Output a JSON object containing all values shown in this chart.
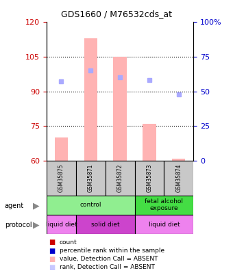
{
  "title": "GDS1660 / M76532cds_at",
  "samples": [
    "GSM35875",
    "GSM35871",
    "GSM35872",
    "GSM35873",
    "GSM35874"
  ],
  "ylim_left": [
    60,
    120
  ],
  "ylim_right": [
    0,
    100
  ],
  "yticks_left": [
    60,
    75,
    90,
    105,
    120
  ],
  "yticks_right": [
    0,
    25,
    50,
    75,
    100
  ],
  "yticklabels_right": [
    "0",
    "25",
    "50",
    "75",
    "100%"
  ],
  "bar_values": [
    70,
    113,
    105,
    76,
    61
  ],
  "bar_color": "#ffb3b3",
  "rank_dots": [
    57,
    65,
    60,
    58,
    48
  ],
  "rank_dot_color": "#aaaaff",
  "agent_groups": [
    {
      "label": "control",
      "cols": [
        0,
        1,
        2
      ],
      "color": "#90ee90"
    },
    {
      "label": "fetal alcohol\nexposure",
      "cols": [
        3,
        4
      ],
      "color": "#44dd44"
    }
  ],
  "protocol_groups": [
    {
      "label": "liquid diet",
      "cols": [
        0
      ],
      "color": "#ee82ee"
    },
    {
      "label": "solid diet",
      "cols": [
        1,
        2
      ],
      "color": "#cc44cc"
    },
    {
      "label": "liquid diet",
      "cols": [
        3,
        4
      ],
      "color": "#ee82ee"
    }
  ],
  "legend_items": [
    {
      "color": "#cc0000",
      "label": "count"
    },
    {
      "color": "#0000cc",
      "label": "percentile rank within the sample"
    },
    {
      "color": "#ffb3b3",
      "label": "value, Detection Call = ABSENT"
    },
    {
      "color": "#c8c8ff",
      "label": "rank, Detection Call = ABSENT"
    }
  ],
  "left_axis_color": "#cc0000",
  "right_axis_color": "#0000cc"
}
